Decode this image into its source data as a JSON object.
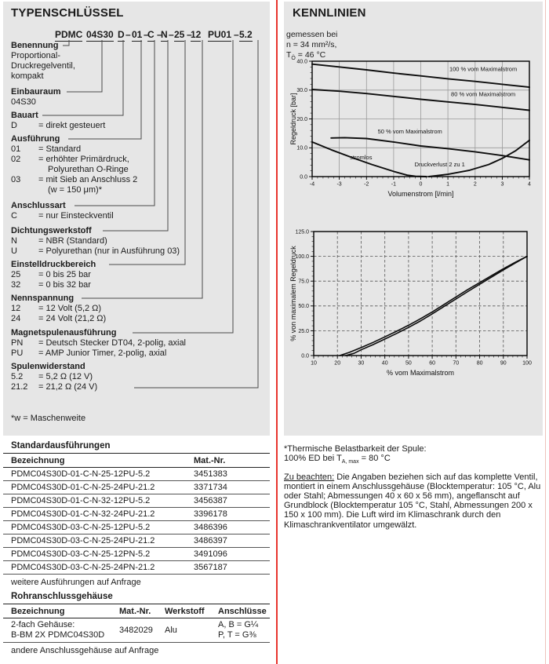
{
  "colors": {
    "panel_gray": "#e6e6e6",
    "divider_red": "#e8342e",
    "edge_red": "#eec3bd",
    "text": "#1b1b1b"
  },
  "left": {
    "title": "TYPENSCHLÜSSEL",
    "code": {
      "segments": [
        "PDMC",
        "04S30",
        "D",
        "01",
        "C",
        "N",
        "25",
        "12",
        "PU01",
        "5.2"
      ],
      "separator": "–"
    },
    "categories": [
      {
        "heading": "Benennung",
        "rows": [
          {
            "text": "Proportional-"
          },
          {
            "text": "Druckregelventil,"
          },
          {
            "text": "kompakt"
          }
        ]
      },
      {
        "heading": "Einbauraum",
        "rows": [
          {
            "text": "04S30"
          }
        ]
      },
      {
        "heading": "Bauart",
        "rows": [
          {
            "term": "D",
            "def": "= direkt gesteuert"
          }
        ]
      },
      {
        "heading": "Ausführung",
        "rows": [
          {
            "term": "01",
            "def": "= Standard"
          },
          {
            "term": "02",
            "def": "= erhöhter Primärdruck,"
          },
          {
            "def": "Polyurethan O-Ringe",
            "cont": true
          },
          {
            "term": "03",
            "def": "= mit Sieb an Anschluss 2"
          },
          {
            "def": "(w = 150 μm)*",
            "cont": true
          }
        ]
      },
      {
        "heading": "Anschlussart",
        "rows": [
          {
            "term": "C",
            "def": "= nur Einsteckventil"
          }
        ]
      },
      {
        "heading": "Dichtungswerkstoff",
        "rows": [
          {
            "term": "N",
            "def": "= NBR (Standard)"
          },
          {
            "term": "U",
            "def": "= Polyurethan (nur in Ausführung 03)"
          }
        ]
      },
      {
        "heading": "Einstelldruckbereich",
        "rows": [
          {
            "term": "25",
            "def": "= 0 bis 25 bar"
          },
          {
            "term": "32",
            "def": "= 0 bis 32 bar"
          }
        ]
      },
      {
        "heading": "Nennspannung",
        "rows": [
          {
            "term": "12",
            "def": "= 12 Volt  (5,2 Ω)"
          },
          {
            "term": "24",
            "def": "= 24 Volt (21,2 Ω)"
          }
        ]
      },
      {
        "heading": "Magnetspulenausführung",
        "rows": [
          {
            "term": "PN",
            "def": "= Deutsch Stecker DT04, 2-polig, axial"
          },
          {
            "term": "PU",
            "def": "= AMP Junior Timer, 2-polig, axial"
          }
        ]
      },
      {
        "heading": "Spulenwiderstand",
        "rows": [
          {
            "term": "5.2",
            "def": "=   5,2 Ω (12 V)"
          },
          {
            "term": "21.2",
            "def": "= 21,2 Ω (24 V)"
          }
        ]
      }
    ],
    "footnote": "*w = Maschenweite"
  },
  "right": {
    "title": "KENNLINIEN",
    "measured": {
      "line1": "gemessen bei",
      "line2": "n = 34 mm²/s,",
      "t_base": "T",
      "t_sub": "Ö",
      "t_rest": " = 46 °C"
    }
  },
  "chart_data": [
    {
      "type": "line",
      "title": "",
      "xlabel": "Volumenstrom [l/min]",
      "ylabel": "Regeldruck [bar]",
      "xlim": [
        -4,
        4
      ],
      "ylim": [
        0,
        40
      ],
      "xticks": [
        -4,
        -3,
        -2,
        -1,
        0,
        1,
        2,
        3,
        4
      ],
      "xtick_labels": [
        "-4",
        "-3",
        "-2",
        "-1",
        "0",
        "1",
        "2",
        "3",
        "4"
      ],
      "yticks": [
        0,
        10,
        20,
        30,
        40
      ],
      "ytick_labels": [
        "0.0",
        "10.0",
        "20.0",
        "30.0",
        "40.0"
      ],
      "grid": "solid",
      "x_minor": 0.2,
      "y_minor": 2,
      "line_width": 1.9,
      "series": [
        {
          "name": "100 % vom Maximalstrom",
          "label_at": [
            2.3,
            36.6
          ],
          "points": [
            [
              -4,
              39
            ],
            [
              -3,
              38
            ],
            [
              -2,
              37
            ],
            [
              -1,
              35.9
            ],
            [
              0,
              34.9
            ],
            [
              1,
              33.9
            ],
            [
              2,
              33
            ],
            [
              3,
              32
            ],
            [
              4,
              31
            ]
          ]
        },
        {
          "name": "80 % vom Maximalstrom",
          "label_at": [
            2.3,
            27.9
          ],
          "points": [
            [
              -4,
              30.2
            ],
            [
              -3,
              29.6
            ],
            [
              -2,
              28.8
            ],
            [
              -1,
              27.8
            ],
            [
              0,
              26.8
            ],
            [
              1,
              25.9
            ],
            [
              2,
              25
            ],
            [
              3,
              24
            ],
            [
              4,
              23
            ]
          ]
        },
        {
          "name": "50 % vom Maximalstrom",
          "label_at": [
            -0.4,
            14.9
          ],
          "points": [
            [
              -3.3,
              13.4
            ],
            [
              -2.8,
              13.5
            ],
            [
              -2,
              13.2
            ],
            [
              -1,
              12
            ],
            [
              0,
              10.6
            ],
            [
              1,
              9.7
            ],
            [
              2,
              8.6
            ],
            [
              3,
              7.3
            ],
            [
              4,
              5.8
            ]
          ]
        },
        {
          "name": "stromlos",
          "label_at": [
            -2.2,
            6.0
          ],
          "points": [
            [
              -4,
              12
            ],
            [
              -3.3,
              9.3
            ],
            [
              -2.5,
              6.5
            ],
            [
              -1.8,
              4.2
            ],
            [
              -1,
              1.8
            ],
            [
              -0.5,
              0.5
            ],
            [
              -0.2,
              0.1
            ],
            [
              0.2,
              0
            ]
          ]
        },
        {
          "name": "Druckverlust 2 zu 1",
          "label_at": [
            0.7,
            3.6
          ],
          "points": [
            [
              0.3,
              0
            ],
            [
              1,
              0.8
            ],
            [
              1.8,
              2.2
            ],
            [
              2.5,
              4.2
            ],
            [
              3,
              6.3
            ],
            [
              3.5,
              9
            ],
            [
              4,
              12.6
            ]
          ]
        }
      ]
    },
    {
      "type": "line",
      "title": "",
      "xlabel": "% vom Maximalstrom",
      "ylabel": "% von maximalem Regeldruck",
      "xlim": [
        10,
        100
      ],
      "ylim": [
        0,
        125
      ],
      "xticks": [
        10,
        20,
        30,
        40,
        50,
        60,
        70,
        80,
        90,
        100
      ],
      "xtick_labels": [
        "10",
        "20",
        "30",
        "40",
        "50",
        "60",
        "70",
        "80",
        "90",
        "100"
      ],
      "yticks": [
        0,
        25,
        50,
        75,
        100,
        125
      ],
      "ytick_labels": [
        "0.0",
        "25.0",
        "50.0",
        "75.0",
        "100.0",
        "125.0"
      ],
      "grid": "dashed",
      "x_minor": 2,
      "y_minor": 5,
      "line_width": 1.6,
      "series": [
        {
          "points": [
            [
              21,
              0
            ],
            [
              25,
              3.2
            ],
            [
              30,
              8
            ],
            [
              35,
              13.2
            ],
            [
              40,
              18.8
            ],
            [
              45,
              24.5
            ],
            [
              50,
              30.5
            ],
            [
              55,
              37
            ],
            [
              60,
              44
            ],
            [
              65,
              51.5
            ],
            [
              70,
              59
            ],
            [
              75,
              66.5
            ],
            [
              80,
              73.5
            ],
            [
              85,
              80.5
            ],
            [
              90,
              87.5
            ],
            [
              95,
              94
            ],
            [
              100,
              100
            ]
          ]
        },
        {
          "points": [
            [
              23.5,
              0
            ],
            [
              27,
              2.2
            ],
            [
              30,
              5.8
            ],
            [
              35,
              11
            ],
            [
              40,
              16.6
            ],
            [
              45,
              22.3
            ],
            [
              50,
              28.3
            ],
            [
              55,
              34.8
            ],
            [
              60,
              42
            ],
            [
              65,
              49.5
            ],
            [
              70,
              57
            ],
            [
              75,
              64.5
            ],
            [
              80,
              71.8
            ],
            [
              85,
              79
            ],
            [
              90,
              86.3
            ],
            [
              95,
              93.2
            ],
            [
              100,
              100
            ]
          ]
        }
      ]
    }
  ],
  "tables": {
    "standard": {
      "title": "Standardausführungen",
      "headers": [
        "Bezeichnung",
        "Mat.-Nr."
      ],
      "rows": [
        [
          "PDMC04S30D-01-C-N-25-12PU-5.2",
          "3451383"
        ],
        [
          "PDMC04S30D-01-C-N-25-24PU-21.2",
          "3371734"
        ],
        [
          "PDMC04S30D-01-C-N-32-12PU-5.2",
          "3456387"
        ],
        [
          "PDMC04S30D-01-C-N-32-24PU-21.2",
          "3396178"
        ],
        [
          "PDMC04S30D-03-C-N-25-12PU-5.2",
          "3486396"
        ],
        [
          "PDMC04S30D-03-C-N-25-24PU-21.2",
          "3486397"
        ],
        [
          "PDMC04S30D-03-C-N-25-12PN-5.2",
          "3491096"
        ],
        [
          "PDMC04S30D-03-C-N-25-24PN-21.2",
          "3567187"
        ]
      ],
      "footer": "weitere Ausführungen auf Anfrage"
    },
    "pipe": {
      "title": "Rohranschlussgehäuse",
      "headers": [
        "Bezeichnung",
        "Mat.-Nr.",
        "Werkstoff",
        "Anschlüsse"
      ],
      "row": {
        "name_lines": [
          "2-fach Gehäuse:",
          "B-BM 2X PDMC04S30D"
        ],
        "mat": "3482029",
        "material": "Alu",
        "ports": [
          "A, B = G¼",
          "P, T = G⅜"
        ]
      },
      "footer": "andere Anschlussgehäuse auf Anfrage"
    }
  },
  "notes": {
    "thermal_title": "*Thermische Belastbarkeit der Spule:",
    "ed_pre": "100% ED bei T",
    "ed_sub": "A, max",
    "ed_rest": " = 80 °C",
    "attention_label": "Zu beachten:",
    "attention_text": "Die Angaben beziehen sich auf das komplette Ventil, montiert in einem Anschlussgehäuse (Blocktemperatur: 105 °C, Alu oder Stahl; Abmessungen 40 x 60 x 56 mm), angeflanscht auf Grundblock (Blocktemperatur 105 °C, Stahl, Abmessungen 200 x 150 x 100 mm). Die Luft wird im Klimaschrank durch den Klimaschrankventilator umgewälzt."
  }
}
